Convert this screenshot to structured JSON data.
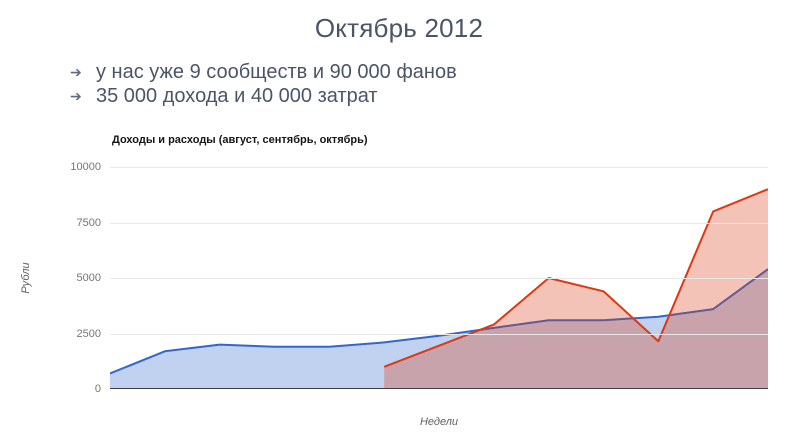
{
  "slide": {
    "title": "Октябрь 2012",
    "bullet_glyph": "➔",
    "bullets": [
      "у нас уже 9 сообществ и 90 000 фанов",
      "35 000 дохода и 40 000 затрат"
    ]
  },
  "chart": {
    "title": "Доходы и расходы (август, сентябрь, октябрь)",
    "xlabel": "Недели",
    "ylabel": "Рубли"
  },
  "chart_data": {
    "type": "area",
    "title": "Доходы и расходы (август, сентябрь, октябрь)",
    "xlabel": "Недели",
    "ylabel": "Рубли",
    "x_unit": "weeks (unlabeled ticks)",
    "n_points": 13,
    "ylim": [
      0,
      10000
    ],
    "y_ticks": [
      0,
      2500,
      5000,
      7500,
      10000
    ],
    "grid": true,
    "legend": "none",
    "series": [
      {
        "name": "blue-series",
        "color": "#3366CC",
        "fill_opacity": 0.3,
        "values": [
          700,
          1700,
          2000,
          1900,
          1900,
          2100,
          2400,
          2750,
          3100,
          3100,
          3250,
          3600,
          5400
        ]
      },
      {
        "name": "red-series",
        "color": "#DC3912",
        "fill_opacity": 0.3,
        "values": [
          null,
          null,
          null,
          null,
          null,
          1000,
          1950,
          2900,
          5000,
          4400,
          2150,
          8000,
          9000
        ]
      }
    ]
  }
}
